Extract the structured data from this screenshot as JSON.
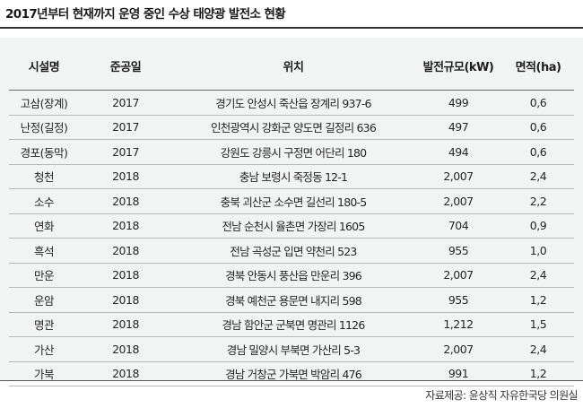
{
  "title": "2017년부터 현재까지 운영 중인 수상 태양광 발전소 현황",
  "table": {
    "headers": {
      "name": "시설명",
      "year": "준공일",
      "location": "위치",
      "capacity": "발전규모(kW)",
      "area": "면적(ha)"
    },
    "rows": [
      {
        "name": "고삼(장계)",
        "year": "2017",
        "location": "경기도 안성시 죽산읍 장계리 937-6",
        "capacity": "499",
        "area": "0,6"
      },
      {
        "name": "난정(길정)",
        "year": "2017",
        "location": "인천광역시 강화군 양도면 길정리 636",
        "capacity": "497",
        "area": "0,6"
      },
      {
        "name": "경포(동막)",
        "year": "2017",
        "location": "강원도 강릉시 구정면 어단리 180",
        "capacity": "494",
        "area": "0,6"
      },
      {
        "name": "청천",
        "year": "2018",
        "location": "충남 보령시 죽정동 12-1",
        "capacity": "2,007",
        "area": "2,4"
      },
      {
        "name": "소수",
        "year": "2018",
        "location": "충북 괴산군 소수면 길선리 180-5",
        "capacity": "2,007",
        "area": "2,2"
      },
      {
        "name": "연화",
        "year": "2018",
        "location": "전남 순천시 율촌면 가장리 1605",
        "capacity": "704",
        "area": "0,9"
      },
      {
        "name": "흑석",
        "year": "2018",
        "location": "전남 곡성군 입면 약천리 523",
        "capacity": "955",
        "area": "1,0"
      },
      {
        "name": "만운",
        "year": "2018",
        "location": "경북 안동시 풍산읍 만운리 396",
        "capacity": "2,007",
        "area": "2,4"
      },
      {
        "name": "운암",
        "year": "2018",
        "location": "경북 예천군 용문면 내지리 598",
        "capacity": "955",
        "area": "1,2"
      },
      {
        "name": "명관",
        "year": "2018",
        "location": "경남 함안군 군북면 명관리 1126",
        "capacity": "1,212",
        "area": "1,5"
      },
      {
        "name": "가산",
        "year": "2018",
        "location": "경남 밀양시 부북면 가산리 5-3",
        "capacity": "2,007",
        "area": "2,4"
      },
      {
        "name": "가북",
        "year": "2018",
        "location": "경남 거창군 가북면 박암리 476",
        "capacity": "991",
        "area": "1,2"
      }
    ]
  },
  "source": "자료제공: 윤상직 자유한국당 의원실",
  "colors": {
    "table_background": "#f2f3f3",
    "rule": "#333333",
    "row_divider": "#b8b8b8"
  }
}
